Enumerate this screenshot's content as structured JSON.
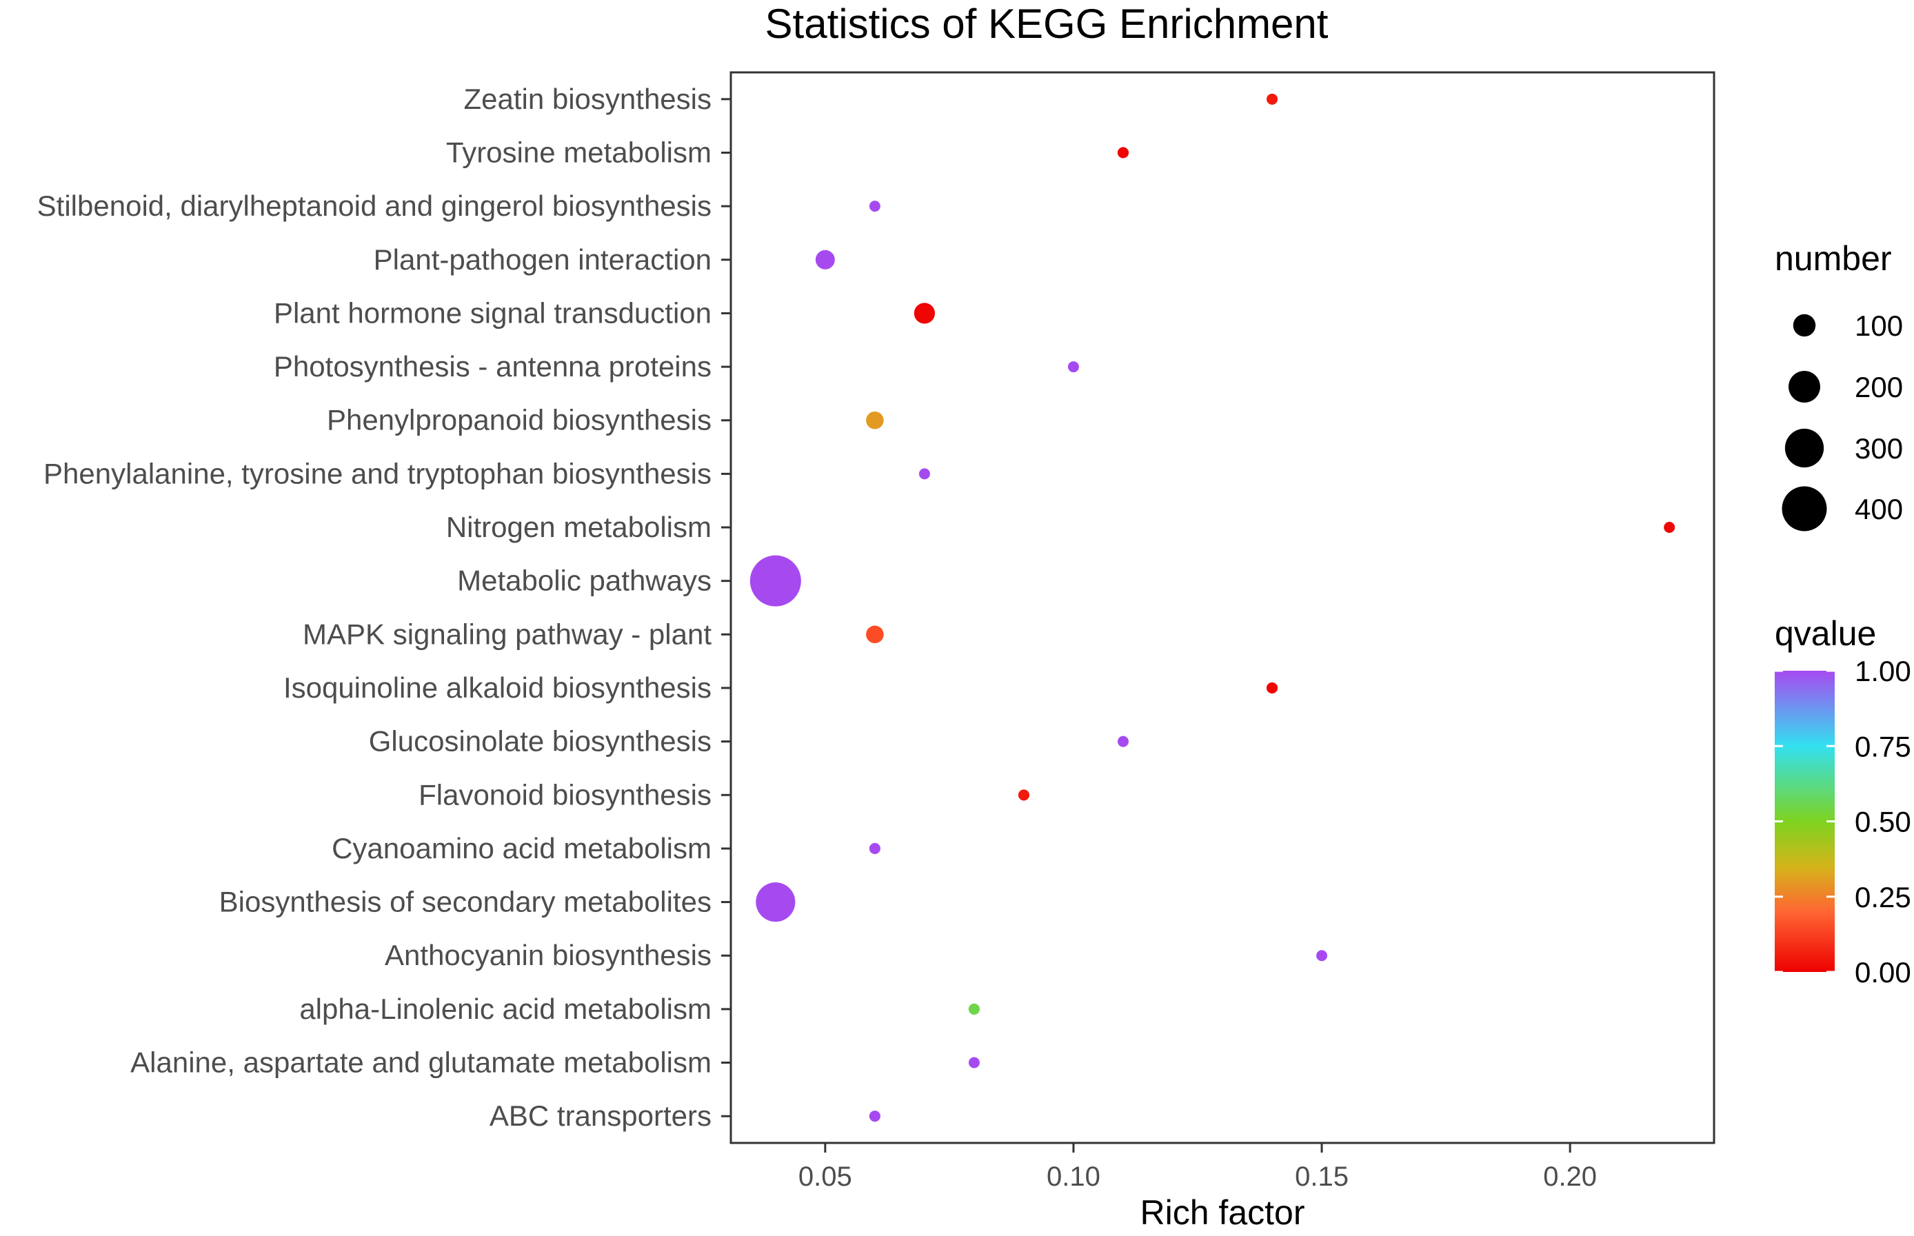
{
  "chart_data": {
    "type": "scatter",
    "title": "Statistics of KEGG Enrichment",
    "xlabel": "Rich factor",
    "ylabel": "",
    "xlim": [
      0.031,
      0.229
    ],
    "x_ticks": [
      0.05,
      0.1,
      0.15,
      0.2
    ],
    "x_tick_labels": [
      "0.05",
      "0.10",
      "0.15",
      "0.20"
    ],
    "grid": false,
    "categories": [
      "Zeatin biosynthesis",
      "Tyrosine metabolism",
      "Stilbenoid, diarylheptanoid and gingerol biosynthesis",
      "Plant-pathogen interaction",
      "Plant hormone signal transduction",
      "Photosynthesis - antenna proteins",
      "Phenylpropanoid biosynthesis",
      "Phenylalanine, tyrosine and tryptophan biosynthesis",
      "Nitrogen metabolism",
      "Metabolic pathways",
      "MAPK signaling pathway - plant",
      "Isoquinoline alkaloid biosynthesis",
      "Glucosinolate biosynthesis",
      "Flavonoid biosynthesis",
      "Cyanoamino acid metabolism",
      "Biosynthesis of secondary metabolites",
      "Anthocyanin biosynthesis",
      "alpha-Linolenic acid metabolism",
      "Alanine, aspartate and glutamate metabolism",
      "ABC transporters"
    ],
    "points": [
      {
        "pathway": "Zeatin biosynthesis",
        "rich_factor": 0.14,
        "number": 12,
        "qvalue": 0.05
      },
      {
        "pathway": "Tyrosine metabolism",
        "rich_factor": 0.11,
        "number": 20,
        "qvalue": 0.01
      },
      {
        "pathway": "Stilbenoid, diarylheptanoid and gingerol biosynthesis",
        "rich_factor": 0.06,
        "number": 10,
        "qvalue": 1.0
      },
      {
        "pathway": "Plant-pathogen interaction",
        "rich_factor": 0.05,
        "number": 60,
        "qvalue": 1.0
      },
      {
        "pathway": "Plant hormone signal transduction",
        "rich_factor": 0.07,
        "number": 70,
        "qvalue": 0.01
      },
      {
        "pathway": "Photosynthesis - antenna proteins",
        "rich_factor": 0.1,
        "number": 4,
        "qvalue": 1.0
      },
      {
        "pathway": "Phenylpropanoid biosynthesis",
        "rich_factor": 0.06,
        "number": 50,
        "qvalue": 0.3
      },
      {
        "pathway": "Phenylalanine, tyrosine and tryptophan biosynthesis",
        "rich_factor": 0.07,
        "number": 12,
        "qvalue": 1.0
      },
      {
        "pathway": "Nitrogen metabolism",
        "rich_factor": 0.22,
        "number": 16,
        "qvalue": 0.01
      },
      {
        "pathway": "Metabolic pathways",
        "rich_factor": 0.04,
        "number": 420,
        "qvalue": 1.0
      },
      {
        "pathway": "MAPK signaling pathway - plant",
        "rich_factor": 0.06,
        "number": 50,
        "qvalue": 0.15
      },
      {
        "pathway": "Isoquinoline alkaloid biosynthesis",
        "rich_factor": 0.14,
        "number": 20,
        "qvalue": 0.01
      },
      {
        "pathway": "Glucosinolate biosynthesis",
        "rich_factor": 0.11,
        "number": 5,
        "qvalue": 1.0
      },
      {
        "pathway": "Flavonoid biosynthesis",
        "rich_factor": 0.09,
        "number": 20,
        "qvalue": 0.05
      },
      {
        "pathway": "Cyanoamino acid metabolism",
        "rich_factor": 0.06,
        "number": 20,
        "qvalue": 1.0
      },
      {
        "pathway": "Biosynthesis of secondary metabolites",
        "rich_factor": 0.04,
        "number": 250,
        "qvalue": 1.0
      },
      {
        "pathway": "Anthocyanin biosynthesis",
        "rich_factor": 0.15,
        "number": 4,
        "qvalue": 1.0
      },
      {
        "pathway": "alpha-Linolenic acid metabolism",
        "rich_factor": 0.08,
        "number": 20,
        "qvalue": 0.55
      },
      {
        "pathway": "Alanine, aspartate and glutamate metabolism",
        "rich_factor": 0.08,
        "number": 16,
        "qvalue": 1.0
      },
      {
        "pathway": "ABC transporters",
        "rich_factor": 0.06,
        "number": 20,
        "qvalue": 1.0
      }
    ],
    "size_legend": {
      "title": "number",
      "entries": [
        100,
        200,
        300,
        400
      ],
      "labels": [
        "100",
        "200",
        "300",
        "400"
      ]
    },
    "color_legend": {
      "title": "qvalue",
      "range": [
        0.0,
        1.0
      ],
      "ticks": [
        1.0,
        0.75,
        0.5,
        0.25,
        0.0
      ],
      "tick_labels": [
        "1.00",
        "0.75",
        "0.50",
        "0.25",
        "0.00"
      ],
      "colors": [
        "#ee0000",
        "#ff6633",
        "#d4b41a",
        "#7ed321",
        "#33e0f0",
        "#a64af0"
      ]
    }
  }
}
